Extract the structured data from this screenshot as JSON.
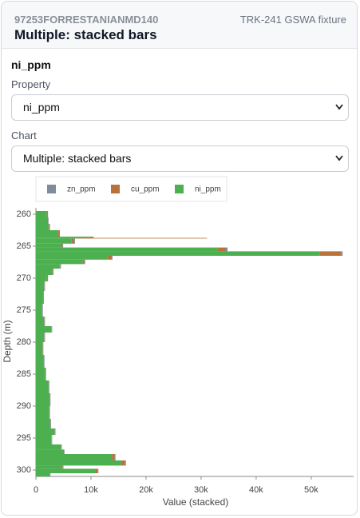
{
  "header": {
    "subtitle": "97253FORRESTANIANMD140",
    "title": "Multiple: stacked bars",
    "badge": "TRK-241 GSWA fixture"
  },
  "section_title": "ni_ppm",
  "form": {
    "property_label": "Property",
    "property_value": "ni_ppm",
    "chart_label": "Chart",
    "chart_value": "Multiple: stacked bars"
  },
  "chart_data": {
    "type": "bar",
    "orientation": "horizontal",
    "stacked": true,
    "xlabel": "Value (stacked)",
    "ylabel": "Depth (m)",
    "depth_from": [
      259.5,
      260.5,
      261.5,
      262.5,
      263.5,
      263.7,
      263.8,
      264.6,
      265.2,
      265.8,
      266.5,
      267.1,
      267.8,
      268.5,
      269.5,
      270.5,
      272,
      274,
      276,
      277.5,
      278.5,
      280,
      282,
      284,
      286,
      288,
      290,
      292,
      293.5,
      294.5,
      296,
      296.8,
      297.5,
      298.5,
      299.3,
      299.8,
      300.5
    ],
    "depth_to": [
      260.5,
      261.5,
      262.5,
      263.5,
      263.7,
      263.8,
      264.6,
      265.2,
      265.8,
      266.5,
      267.1,
      267.8,
      268.5,
      269.5,
      270.5,
      272,
      274,
      276,
      277.5,
      278.5,
      280,
      282,
      284,
      286,
      288,
      290,
      292,
      293.5,
      294.5,
      296,
      296.8,
      297.5,
      298.5,
      299.3,
      299.8,
      300.5,
      301
    ],
    "series": [
      {
        "name": "zn_ppm",
        "color": "#7f8c99",
        "values": [
          100,
          100,
          100,
          150,
          200,
          100,
          200,
          150,
          300,
          300,
          200,
          150,
          150,
          100,
          100,
          100,
          100,
          100,
          100,
          100,
          100,
          100,
          100,
          100,
          100,
          100,
          100,
          100,
          100,
          100,
          100,
          100,
          150,
          150,
          100,
          150,
          100
        ]
      },
      {
        "name": "cu_ppm",
        "color": "#b8733a",
        "values": [
          100,
          100,
          150,
          200,
          500,
          23500,
          400,
          300,
          1500,
          3900,
          700,
          300,
          100,
          100,
          100,
          50,
          50,
          50,
          50,
          50,
          50,
          50,
          50,
          50,
          50,
          50,
          50,
          50,
          50,
          50,
          100,
          100,
          500,
          700,
          100,
          400,
          50
        ]
      },
      {
        "name": "ni_ppm",
        "color": "#4caf50",
        "values": [
          2000,
          2100,
          2300,
          4000,
          9800,
          7500,
          6500,
          4500,
          33000,
          51500,
          13000,
          8500,
          4300,
          3000,
          2000,
          1500,
          1300,
          1100,
          1500,
          2800,
          1500,
          1200,
          1400,
          1700,
          2300,
          2500,
          2400,
          2600,
          3400,
          2800,
          4500,
          5000,
          13800,
          15500,
          4800,
          10800,
          2500
        ]
      }
    ],
    "xlim": [
      0,
      57700
    ],
    "xticks": [
      0,
      {
        "value": 10000,
        "label": "10k"
      },
      {
        "value": 20000,
        "label": "20k"
      },
      {
        "value": 30000,
        "label": "30k"
      },
      {
        "value": 40000,
        "label": "40k"
      },
      {
        "value": 50000,
        "label": "50k"
      }
    ],
    "ylim": [
      259,
      301
    ],
    "y_inverted": true,
    "yticks": [
      260,
      265,
      270,
      275,
      280,
      285,
      290,
      295,
      300
    ],
    "grid": false
  }
}
